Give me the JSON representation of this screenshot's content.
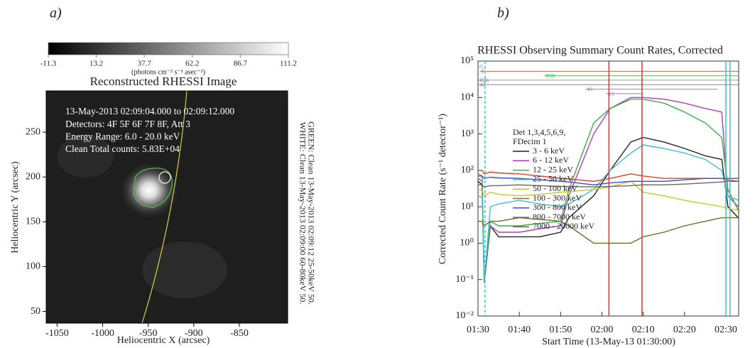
{
  "chart_data": [
    {
      "type": "image",
      "panel_label": "a)",
      "title": "Reconstructed RHESSI Image",
      "xlabel": "Heliocentric X (arcsec)",
      "ylabel": "Heliocentric Y (arcsec)",
      "xlim": [
        -1062,
        -797
      ],
      "ylim": [
        37,
        296
      ],
      "xticks": [
        -1050,
        -1000,
        -950,
        -900,
        -850
      ],
      "yticks": [
        50,
        100,
        150,
        200,
        250
      ],
      "clim": [
        -11.3,
        111.2
      ],
      "cticks": [
        -11.3,
        13.2,
        37.7,
        62.2,
        86.7,
        111.2
      ],
      "clabel": "(photons cm⁻² s⁻¹ asec⁻²)",
      "annotations": [
        "13-May-2013 02:09:04.000 to 02:09:12.000",
        "Detectors: 4F 5F 6F 7F 8F, Att 3",
        "Energy Range: 6.0 - 20.0 keV",
        "Clean    Total counts: 5.83E+04"
      ],
      "side_notes": [
        "WHITE: Clean 13-May-2013 02:09:00 60-80keV 50.",
        "GREEN: Clean 13-May-2013 02:09:12 25-50keV 50."
      ]
    },
    {
      "type": "line",
      "panel_label": "b)",
      "title": "RHESSI Observing Summary Count Rates, Corrected",
      "xlabel": "Start Time (13-May-13 01:30:00)",
      "ylabel": "Corrected Count Rate (s⁻¹ detector⁻¹)",
      "log_y": true,
      "xlim": [
        0,
        63.1
      ],
      "ylim": [
        0.01,
        100000
      ],
      "xticks": [
        {
          "value": 0,
          "label": "01:30"
        },
        {
          "value": 10,
          "label": "01:40"
        },
        {
          "value": 20,
          "label": "01:50"
        },
        {
          "value": 30,
          "label": "02:00"
        },
        {
          "value": 40,
          "label": "02:10"
        },
        {
          "value": 50,
          "label": "02:20"
        },
        {
          "value": 60,
          "label": "02:30"
        }
      ],
      "yticks": [
        {
          "value": 0.01,
          "label": "10⁻²"
        },
        {
          "value": 0.1,
          "label": "10⁻¹"
        },
        {
          "value": 1,
          "label": "10⁰"
        },
        {
          "value": 10,
          "label": "10¹"
        },
        {
          "value": 100,
          "label": "10²"
        },
        {
          "value": 1000,
          "label": "10³"
        },
        {
          "value": 10000,
          "label": "10⁴"
        },
        {
          "value": 100000,
          "label": "10⁵"
        }
      ],
      "legend_header": [
        "Det 1,3,4,5,6,9,",
        "FDecim 1"
      ],
      "x": [
        0,
        1,
        1.5,
        3,
        5,
        10,
        15,
        20,
        22,
        28,
        32,
        37,
        40,
        45,
        50,
        55,
        59,
        60.5,
        63
      ],
      "series": [
        {
          "name": "3 - 6 keV",
          "color": "#222222",
          "values": [
            50,
            40,
            0.08,
            3,
            1.5,
            1.5,
            1.5,
            2,
            5,
            20,
            100,
            600,
            800,
            600,
            400,
            250,
            200,
            10,
            5
          ]
        },
        {
          "name": "6 - 12 keV",
          "color": "#b040b8",
          "values": [
            60,
            50,
            0.1,
            3,
            2,
            2,
            2.5,
            3,
            20,
            1000,
            5000,
            10000,
            10000,
            9000,
            7000,
            5000,
            4000,
            20,
            10
          ]
        },
        {
          "name": "12 - 25 keV",
          "color": "#3cb043",
          "values": [
            80,
            70,
            0.1,
            4,
            3,
            3,
            3.5,
            4,
            30,
            2000,
            5000,
            9000,
            9000,
            7000,
            4000,
            2000,
            800,
            30,
            8
          ]
        },
        {
          "name": "25 - 50 keV",
          "color": "#3fbfcf",
          "values": [
            20,
            18,
            0.08,
            10,
            12,
            15,
            12,
            10,
            12,
            30,
            100,
            300,
            500,
            400,
            300,
            200,
            100,
            20,
            15
          ]
        },
        {
          "name": "50 - 100 keV",
          "color": "#c8c828",
          "values": [
            30,
            28,
            20,
            25,
            22,
            20,
            22,
            25,
            26,
            30,
            35,
            50,
            25,
            20,
            15,
            12,
            10,
            9,
            8
          ]
        },
        {
          "name": "100 - 300 keV",
          "color": "#e0402a",
          "values": [
            100,
            100,
            80,
            90,
            85,
            80,
            70,
            60,
            58,
            50,
            60,
            80,
            70,
            60,
            60,
            60,
            60,
            55,
            50
          ]
        },
        {
          "name": "300 - 800 keV",
          "color": "#3a4fc8",
          "values": [
            70,
            70,
            60,
            65,
            62,
            60,
            55,
            50,
            48,
            40,
            45,
            50,
            50,
            50,
            55,
            60,
            60,
            60,
            60
          ]
        },
        {
          "name": "800 - 7000 keV",
          "color": "#666666",
          "values": [
            40,
            40,
            35,
            38,
            38,
            40,
            38,
            36,
            36,
            35,
            36,
            38,
            40,
            40,
            42,
            45,
            48,
            50,
            50
          ]
        },
        {
          "name": "7000 - 20000 keV",
          "color": "#6b6b2a",
          "values": [
            4,
            4,
            3,
            4,
            4,
            5,
            4.5,
            4,
            3,
            1,
            1,
            1,
            1.5,
            2,
            3,
            4,
            5,
            5,
            5
          ]
        }
      ],
      "vlines": [
        {
          "x": 1.7,
          "color": "#3fbfcf",
          "dash": true
        },
        {
          "x": 31.7,
          "color": "#e0302a",
          "dash": false
        },
        {
          "x": 39.7,
          "color": "#e0302a",
          "dash": false
        },
        {
          "x": 60,
          "color": "#3fbfcf",
          "dash": false
        },
        {
          "x": 61,
          "color": "#3fbfcf",
          "dash": false
        }
      ],
      "flags": [
        {
          "label": "N",
          "color": "#3fbfcf",
          "x": [
            0,
            0.5
          ]
        },
        {
          "label": "F",
          "color": "#c05040",
          "x": [
            0.5,
            63.1
          ]
        },
        {
          "label": "RD0",
          "color": "#3cb043",
          "x": [
            16,
            63.1
          ]
        },
        {
          "label": "RD6",
          "color": "#777777",
          "x": [
            0,
            63.1
          ]
        },
        {
          "label": "A0",
          "color": "#777777",
          "x": [
            0,
            63.1
          ]
        },
        {
          "label": "A1",
          "color": "#a050a0",
          "x": [
            26,
            58
          ]
        },
        {
          "label": "A3",
          "color": "#c050c0",
          "x": [
            31,
            40
          ]
        }
      ]
    }
  ]
}
